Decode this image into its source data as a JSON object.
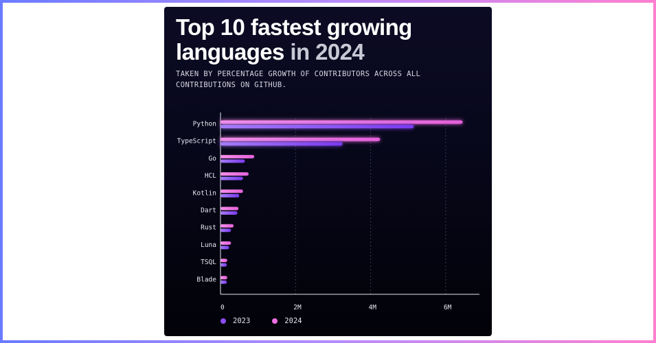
{
  "header": {
    "title_main": "Top 10 fastest growing languages",
    "title_accent": "in 2024",
    "subtitle": "TAKEN BY PERCENTAGE GROWTH OF CONTRIBUTORS ACROSS ALL CONTRIBUTIONS ON GITHUB."
  },
  "colors": {
    "series_2023": "#8a4cf0",
    "series_2024": "#ee6fe3"
  },
  "chart_data": {
    "type": "bar",
    "orientation": "horizontal",
    "categories": [
      "Python",
      "TypeScript",
      "Go",
      "HCL",
      "Kotlin",
      "Dart",
      "Rust",
      "Luna",
      "TSQL",
      "Blade"
    ],
    "series": [
      {
        "name": "2024",
        "values": [
          6.45,
          4.25,
          0.9,
          0.75,
          0.6,
          0.48,
          0.35,
          0.28,
          0.18,
          0.18
        ]
      },
      {
        "name": "2023",
        "values": [
          5.15,
          3.25,
          0.65,
          0.6,
          0.5,
          0.45,
          0.28,
          0.23,
          0.17,
          0.17
        ]
      }
    ],
    "x_ticks": [
      "0",
      "2M",
      "4M",
      "6M"
    ],
    "x_tick_values": [
      0,
      2,
      4,
      6
    ],
    "xlim": [
      0,
      6.9
    ],
    "grid": true,
    "legend": {
      "placement": "bottom-left",
      "items": [
        "2023",
        "2024"
      ]
    }
  }
}
